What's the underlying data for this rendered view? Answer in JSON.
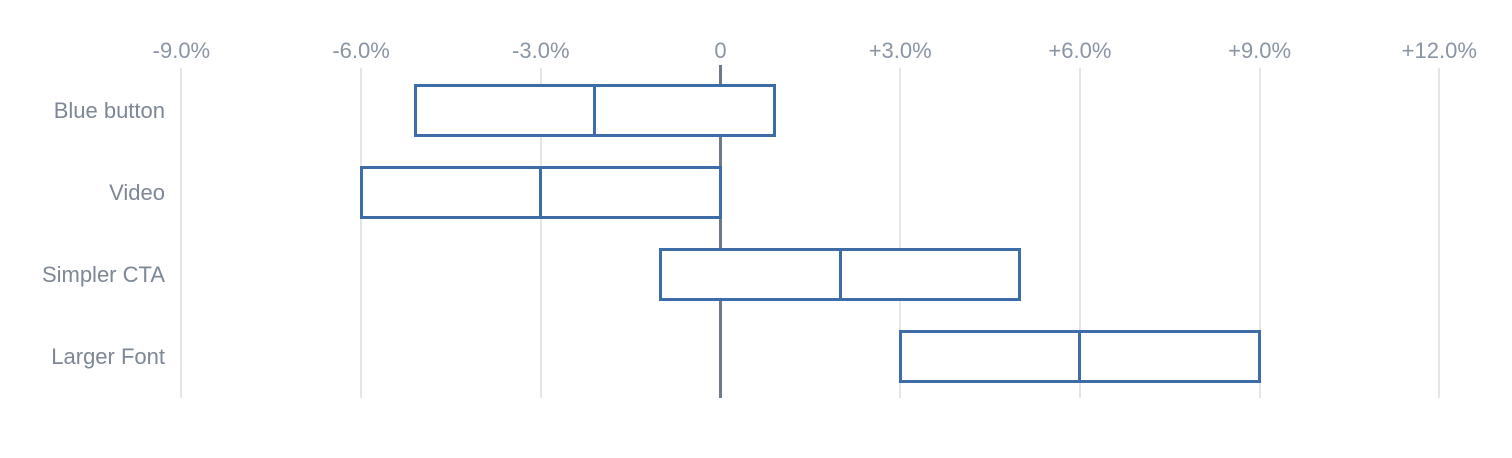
{
  "chart_data": {
    "type": "bar",
    "subtype": "horizontal-range-box-with-midline",
    "title": "",
    "categories": [
      "Blue button",
      "Video",
      "Simpler CTA",
      "Larger Font"
    ],
    "series": [
      {
        "name": "Blue button",
        "low_pct": -5.1,
        "mid_pct": -2.1,
        "high_pct": 0.9
      },
      {
        "name": "Video",
        "low_pct": -6.0,
        "mid_pct": -3.0,
        "high_pct": 0.0
      },
      {
        "name": "Simpler CTA",
        "low_pct": -1.0,
        "mid_pct": 2.0,
        "high_pct": 5.0
      },
      {
        "name": "Larger Font",
        "low_pct": 3.0,
        "mid_pct": 6.0,
        "high_pct": 9.0
      }
    ],
    "x_axis": {
      "unit": "%",
      "tick_values": [
        -9,
        -6,
        -3,
        0,
        3,
        6,
        9,
        12
      ],
      "tick_labels": [
        "-9.0%",
        "-6.0%",
        "-3.0%",
        "0",
        "+3.0%",
        "+6.0%",
        "+9.0%",
        "+12.0%"
      ],
      "range": [
        -9,
        12
      ],
      "zero_line": true
    },
    "grid": "vertical-only",
    "legend_position": "none"
  },
  "colors": {
    "box_border": "#3d6ca6",
    "box_fill": "#ffffff",
    "grid_line": "#e3e5e8",
    "zero_line": "#6f7a88",
    "axis_text": "#8a95a3",
    "row_label_text": "#7d8795",
    "background": "#ffffff"
  }
}
